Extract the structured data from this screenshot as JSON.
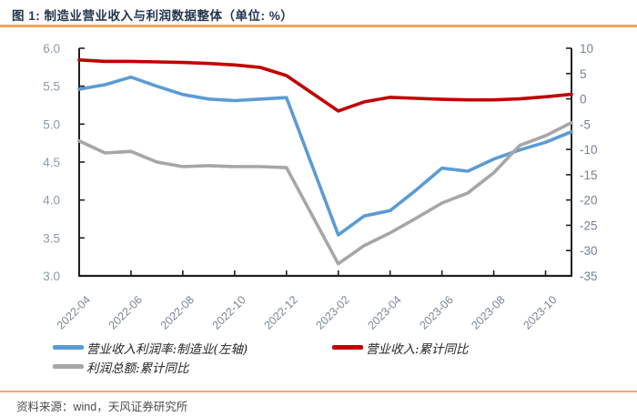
{
  "title": {
    "text": "图 1: 制造业营业收入与利润数据整体（单位: %）"
  },
  "source": {
    "text": "资料来源：wind，天风证券研究所"
  },
  "colors": {
    "accent_orange": "#F2A25F",
    "title_navy": "#24364E",
    "axis_line": "#1F1F1F",
    "x_tick_label": "#7B8690",
    "left_tick_label": "#8C9AAB",
    "right_tick_label": "#76828E",
    "series_blue": "#5B9BD5",
    "series_red": "#C00000",
    "series_gray": "#A6A6A6"
  },
  "chart_data": {
    "type": "line",
    "title": "制造业营业收入与利润数据整体",
    "unit": "%",
    "grid": false,
    "legend_position": "bottom",
    "x": [
      "2022-04",
      "2022-05",
      "2022-06",
      "2022-07",
      "2022-08",
      "2022-09",
      "2022-10",
      "2022-11",
      "2022-12",
      "2023-01",
      "2023-02",
      "2023-03",
      "2023-04",
      "2023-05",
      "2023-06",
      "2023-07",
      "2023-08",
      "2023-09",
      "2023-10",
      "2023-11"
    ],
    "x_tick_labels": [
      "2022-04",
      "2022-06",
      "2022-08",
      "2022-10",
      "2022-12",
      "2023-02",
      "2023-04",
      "2023-06",
      "2023-08",
      "2023-10"
    ],
    "left_axis": {
      "min": 3.0,
      "max": 6.0,
      "step": 0.5,
      "ticks": [
        "3.0",
        "3.5",
        "4.0",
        "4.5",
        "5.0",
        "5.5",
        "6.0"
      ]
    },
    "right_axis": {
      "min": -35,
      "max": 10,
      "step": 5,
      "ticks": [
        "-35",
        "-30",
        "-25",
        "-20",
        "-15",
        "-10",
        "-5",
        "0",
        "5",
        "10"
      ]
    },
    "series": [
      {
        "name": "营业收入利润率:制造业(左轴)",
        "axis": "left",
        "color": "#5B9BD5",
        "values": [
          5.46,
          5.52,
          5.62,
          5.5,
          5.39,
          5.33,
          5.31,
          5.33,
          5.35,
          null,
          3.54,
          3.79,
          3.86,
          4.13,
          4.42,
          4.38,
          4.54,
          4.66,
          4.76,
          4.9
        ]
      },
      {
        "name": "营业收入:累计同比",
        "axis": "right",
        "color": "#C00000",
        "values": [
          7.7,
          7.4,
          7.4,
          7.3,
          7.2,
          7.0,
          6.7,
          6.2,
          4.6,
          null,
          -2.4,
          -0.6,
          0.3,
          0.1,
          -0.1,
          -0.2,
          -0.2,
          0.0,
          0.4,
          0.9
        ]
      },
      {
        "name": "利润总额:累计同比",
        "axis": "right",
        "color": "#A6A6A6",
        "values": [
          -8.3,
          -10.7,
          -10.4,
          -12.5,
          -13.4,
          -13.2,
          -13.4,
          -13.4,
          -13.6,
          null,
          -32.6,
          -29.0,
          -26.5,
          -23.6,
          -20.6,
          -18.6,
          -14.6,
          -9.2,
          -7.3,
          -4.7
        ]
      }
    ]
  }
}
